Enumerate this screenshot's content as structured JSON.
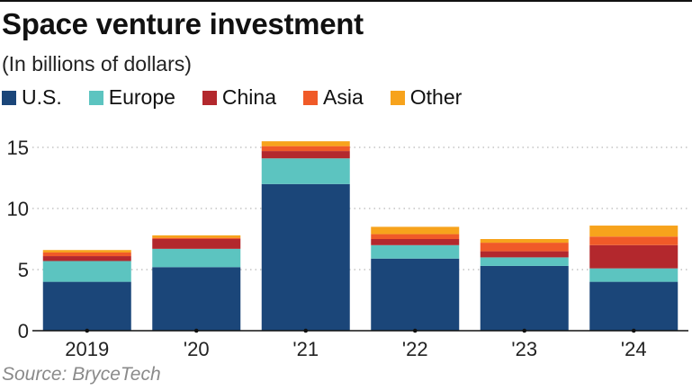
{
  "title": "Space venture investment",
  "subtitle": "(In billions of dollars)",
  "source": "Source: BryceTech",
  "chart_data": {
    "type": "bar",
    "stacked": true,
    "categories": [
      "2019",
      "'20",
      "'21",
      "'22",
      "'23",
      "'24"
    ],
    "series": [
      {
        "name": "U.S.",
        "color": "#1b4679",
        "values": [
          4.0,
          5.2,
          12.0,
          5.9,
          5.3,
          4.0
        ]
      },
      {
        "name": "Europe",
        "color": "#5cc4c0",
        "values": [
          1.7,
          1.5,
          2.1,
          1.1,
          0.7,
          1.1
        ]
      },
      {
        "name": "China",
        "color": "#b3282d",
        "values": [
          0.4,
          0.8,
          0.6,
          0.5,
          0.5,
          1.9
        ]
      },
      {
        "name": "Asia",
        "color": "#f05a28",
        "values": [
          0.3,
          0.1,
          0.4,
          0.4,
          0.7,
          0.7
        ]
      },
      {
        "name": "Other",
        "color": "#f7a31c",
        "values": [
          0.2,
          0.2,
          0.4,
          0.6,
          0.3,
          0.9
        ]
      }
    ],
    "yticks": [
      0,
      5,
      10,
      15
    ],
    "ylim": [
      0,
      15.5
    ],
    "grid": true,
    "legend_position": "top"
  }
}
